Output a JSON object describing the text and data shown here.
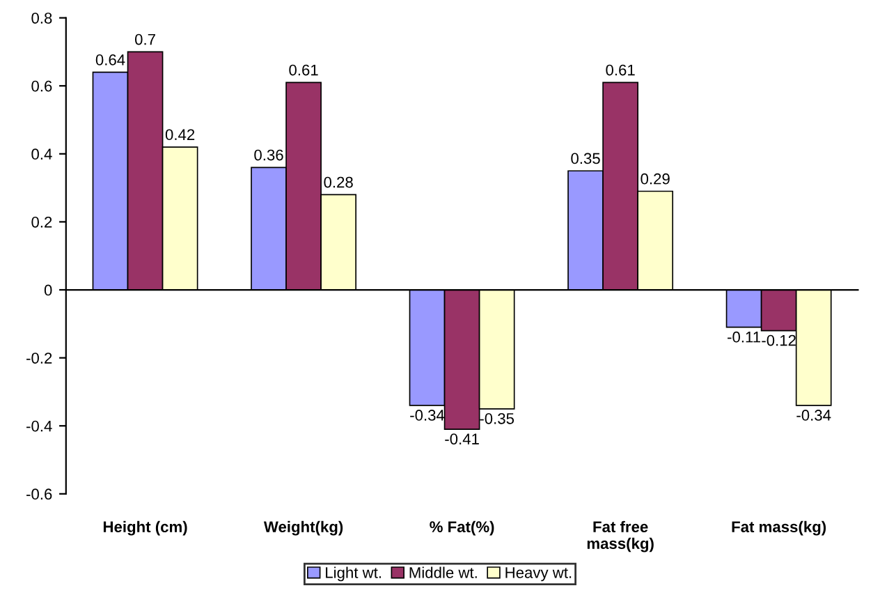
{
  "chart_data": {
    "type": "bar",
    "categories": [
      "Height (cm)",
      "Weight(kg)",
      "% Fat(%)",
      "Fat free\nmass(kg)",
      "Fat mass(kg)"
    ],
    "series": [
      {
        "name": "Light wt.",
        "color": "#9999ff",
        "values": [
          0.64,
          0.36,
          -0.34,
          0.35,
          -0.11
        ]
      },
      {
        "name": "Middle wt.",
        "color": "#993366",
        "values": [
          0.7,
          0.61,
          -0.41,
          0.61,
          -0.12
        ]
      },
      {
        "name": "Heavy wt.",
        "color": "#ffffcc",
        "values": [
          0.42,
          0.28,
          -0.35,
          0.29,
          -0.34
        ]
      }
    ],
    "ylim": [
      -0.6,
      0.8
    ],
    "yticks": [
      -0.6,
      -0.4,
      -0.2,
      0,
      0.2,
      0.4,
      0.6,
      0.8
    ],
    "legend": "bottom",
    "data_labels": true
  }
}
